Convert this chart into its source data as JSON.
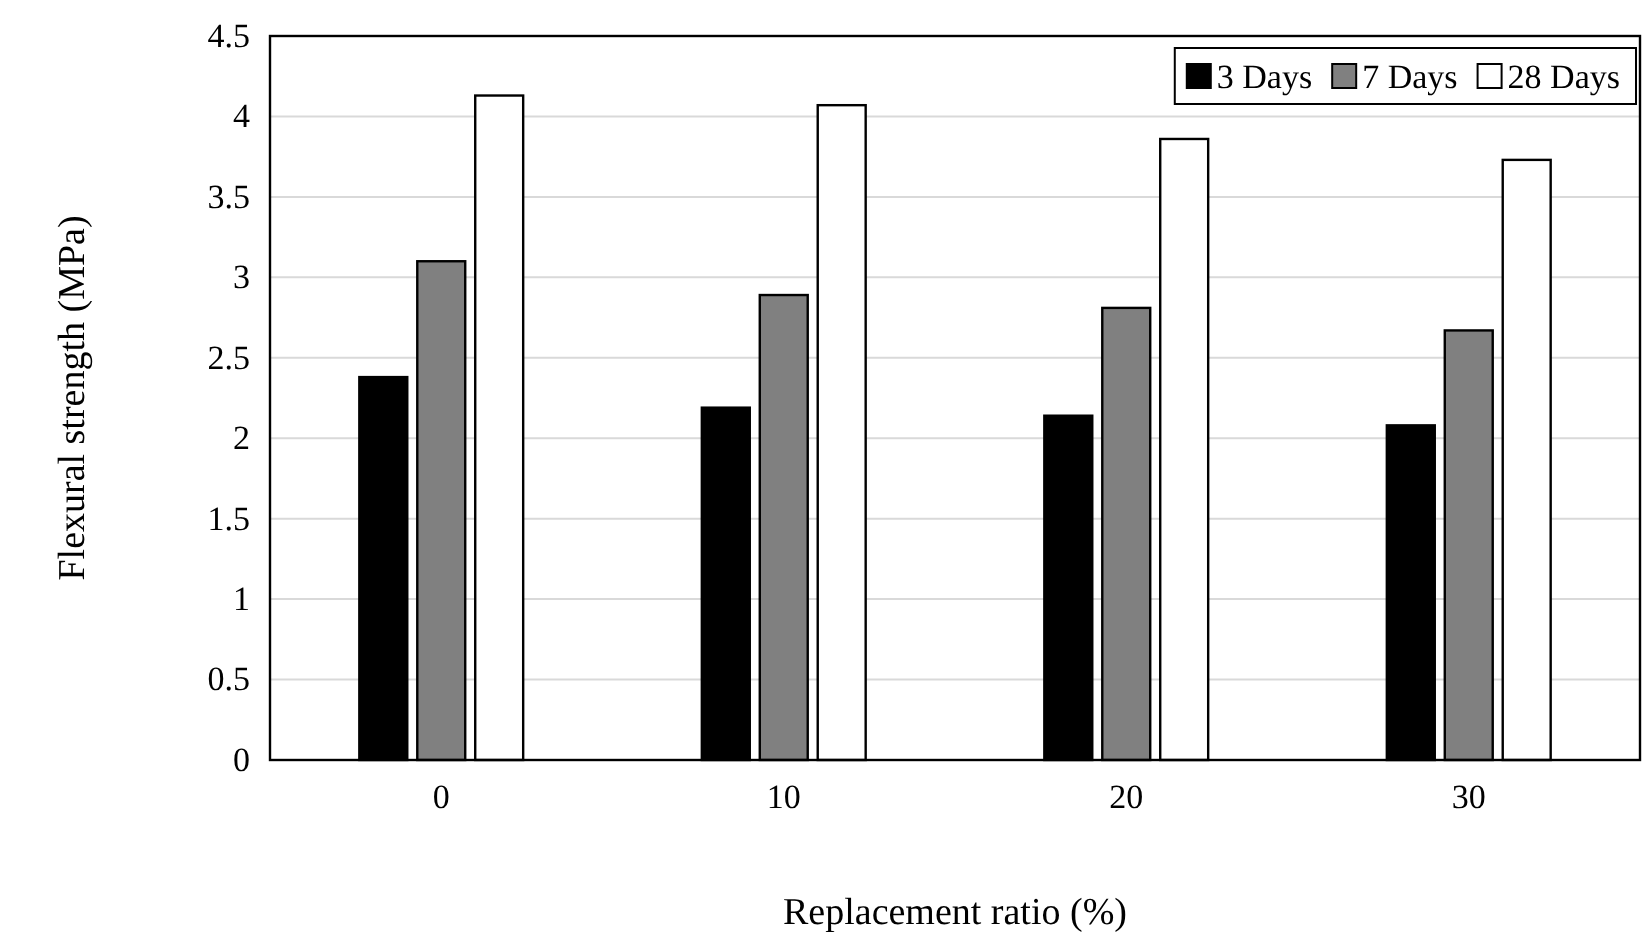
{
  "chart_data": {
    "type": "bar",
    "xlabel": "Replacement ratio (%)",
    "ylabel": "Flexural strength (MPa)",
    "categories": [
      "0",
      "10",
      "20",
      "30"
    ],
    "series": [
      {
        "name": "3 Days",
        "color": "#000000",
        "values": [
          2.38,
          2.19,
          2.14,
          2.08
        ]
      },
      {
        "name": "7 Days",
        "color": "#808080",
        "values": [
          3.1,
          2.89,
          2.81,
          2.67
        ]
      },
      {
        "name": "28 Days",
        "color": "#ffffff",
        "values": [
          4.13,
          4.07,
          3.86,
          3.73
        ]
      }
    ],
    "ylim": [
      0,
      4.5
    ],
    "yticks": [
      0,
      0.5,
      1,
      1.5,
      2,
      2.5,
      3,
      3.5,
      4,
      4.5
    ],
    "grid": "y",
    "legend": "top right"
  }
}
